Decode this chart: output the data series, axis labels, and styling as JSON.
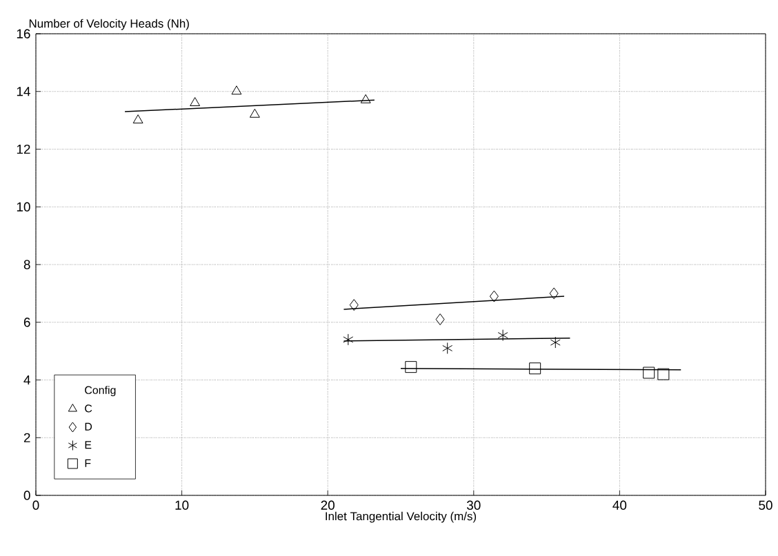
{
  "chart_data": {
    "type": "scatter",
    "xlabel": "Inlet Tangential Velocity (m/s)",
    "ylabel": "Number of Velocity Heads (Nh)",
    "legend_title": "Config",
    "legend": "bottom left",
    "grid": true,
    "xlim": [
      0,
      50
    ],
    "xticks": [
      0,
      10,
      20,
      30,
      40,
      50
    ],
    "ylim": [
      0,
      16
    ],
    "yticks": [
      0,
      2,
      4,
      6,
      8,
      10,
      12,
      14,
      16
    ],
    "series": [
      {
        "name": "C",
        "marker": "triangle",
        "color": "#000000",
        "x": [
          7.0,
          10.9,
          13.75,
          15.0,
          22.6
        ],
        "values": [
          13.0,
          13.6,
          14.0,
          13.2,
          13.7
        ]
      },
      {
        "name": "D",
        "marker": "diamond",
        "color": "#000000",
        "x": [
          21.8,
          27.7,
          31.4,
          35.5
        ],
        "values": [
          6.6,
          6.1,
          6.9,
          7.0
        ]
      },
      {
        "name": "E",
        "marker": "cross",
        "color": "#000000",
        "x": [
          21.4,
          28.2,
          32.0,
          35.6
        ],
        "values": [
          5.4,
          5.1,
          5.55,
          5.3
        ]
      },
      {
        "name": "F",
        "marker": "square",
        "color": "#000000",
        "x": [
          25.7,
          34.2,
          42.0,
          43.0
        ],
        "values": [
          4.45,
          4.4,
          4.25,
          4.2
        ]
      },
      {
        "type": "line",
        "line_style": "solid",
        "color": "#000000",
        "x": [
          6.1,
          23.2
        ],
        "values": [
          13.3,
          13.7
        ]
      },
      {
        "type": "line",
        "line_style": "solid",
        "color": "#000000",
        "x": [
          21.1,
          36.2
        ],
        "values": [
          6.45,
          6.9
        ]
      },
      {
        "type": "line",
        "line_style": "solid",
        "color": "#000000",
        "x": [
          21.1,
          36.6
        ],
        "values": [
          5.35,
          5.45
        ]
      },
      {
        "type": "line",
        "line_style": "solid",
        "color": "#000000",
        "x": [
          25.0,
          44.2
        ],
        "values": [
          4.4,
          4.35
        ]
      }
    ]
  }
}
